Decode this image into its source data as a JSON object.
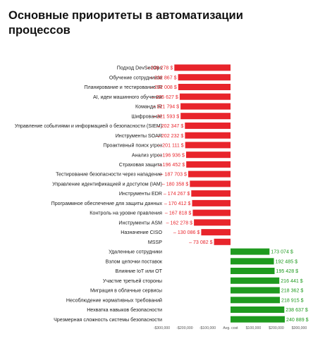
{
  "title": "Основные приоритеты в автоматизации процессов",
  "colors": {
    "negative": "#e8242b",
    "positive": "#1f9a1f",
    "negative_text": "#e8242b",
    "positive_text": "#1f9a1f"
  },
  "chart_data": {
    "type": "bar",
    "orientation": "horizontal",
    "title": "Основные приоритеты в автоматизации процессов",
    "xlabel": "",
    "ylabel": "",
    "xlim": [
      -300000,
      300000
    ],
    "x_ticks": [
      -300000,
      -200000,
      -100000,
      0,
      100000,
      200000,
      300000
    ],
    "x_tick_labels": [
      "-$300,000",
      "-$200,000",
      "-$100,000",
      "Avg. cost",
      "$100,000",
      "$200,000",
      "$300,000"
    ],
    "categories": [
      "Подход DevSecOps",
      "Обучение сотрудников",
      "Планирование и тестирование IR",
      "AI, идеи машинного обучения",
      "Команда IR",
      "Шифрование",
      "Управление событиями и информацией о безопасности (SIEM)",
      "Инструменты SOAR",
      "Проактивный поиск угроз",
      "Анализ угроз",
      "Страховая защита",
      "Тестирование безопасности через нападение",
      "Управление идентификацией и доступом (IAM)",
      "Инструменты EDR",
      "Программное обеспечение для защиты данных",
      "Контроль на уровне правления",
      "Инструменты ASM",
      "Назначение CISO",
      "MSSP",
      "Удаленные сотрудники",
      "Взлом цепочки поставок",
      "Влияние IoT или OT",
      "Участие третьей стороны",
      "Миграция в облачные сервисы",
      "Несоблюдение нормативных требований",
      "Нехватка навыков безопасности",
      "Чрезмерная сложность системы безопасности"
    ],
    "values": [
      -249278,
      -232867,
      -232008,
      -225627,
      -221794,
      -221593,
      -202347,
      -202232,
      -201111,
      -196936,
      -196452,
      -187703,
      -180358,
      -174267,
      -170412,
      -167818,
      -162278,
      -130086,
      -73082,
      173074,
      192485,
      195428,
      216441,
      218362,
      218915,
      238637,
      240889
    ],
    "value_labels": [
      "– 249 278 $",
      "– 232 867 $",
      "– 232 008 $",
      "– 225 627 $",
      "– 221 794 $",
      "– 221 593 $",
      "– 202 347 $",
      "– 202 232 $",
      "– 201 111 $",
      "– 196 936 $",
      "– 196 452 $",
      "– 187 703 $",
      "– 180 358 $",
      "– 174 267 $",
      "– 170 412 $",
      "– 167 818 $",
      "– 162 278 $",
      "– 130 086 $",
      "– 73 082 $",
      "173 074 $",
      "192 485 $",
      "195 428 $",
      "216 441 $",
      "218 362 $",
      "218 915 $",
      "238 637 $",
      "240 889 $"
    ],
    "grid": false,
    "legend": "none"
  }
}
